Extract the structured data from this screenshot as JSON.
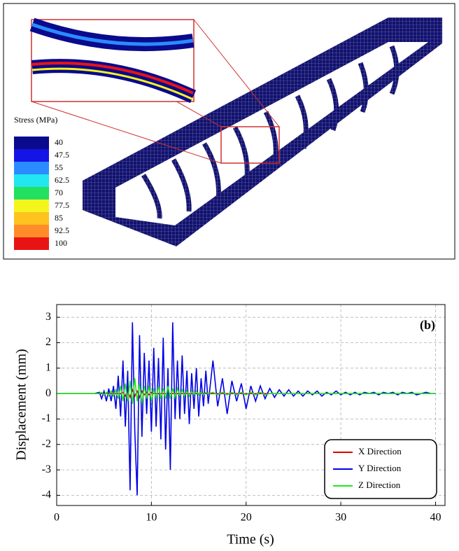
{
  "stress_legend": {
    "title": "Stress (MPa)",
    "levels": [
      40,
      47.5,
      55,
      62.5,
      70,
      77.5,
      85,
      92.5,
      100
    ],
    "colors": [
      "#0a0a8c",
      "#1414e6",
      "#2a8cff",
      "#22e6f0",
      "#22e060",
      "#f5f51e",
      "#ffc21e",
      "#ff8c28",
      "#e81414"
    ]
  },
  "chart_data": {
    "type": "line",
    "annotation": "(b)",
    "xlabel": "Time (s)",
    "ylabel": "Displacement (mm)",
    "xlim": [
      0,
      41
    ],
    "ylim": [
      -4.4,
      3.5
    ],
    "xticks": [
      0,
      10,
      20,
      30,
      40
    ],
    "yticks": [
      -4,
      -3,
      -2,
      -1,
      0,
      1,
      2,
      3
    ],
    "grid": true,
    "legend_position": "lower right",
    "x": [
      0,
      4,
      4.5,
      4.75,
      5,
      5.25,
      5.5,
      5.75,
      6,
      6.25,
      6.5,
      6.75,
      7,
      7.25,
      7.5,
      7.75,
      8,
      8.25,
      8.5,
      8.75,
      9,
      9.25,
      9.5,
      9.75,
      10,
      10.25,
      10.5,
      10.75,
      11,
      11.25,
      11.5,
      11.75,
      12,
      12.25,
      12.5,
      12.75,
      13,
      13.25,
      13.5,
      13.75,
      14,
      14.25,
      14.5,
      14.75,
      15,
      15.25,
      15.5,
      15.75,
      16,
      16.5,
      17,
      17.5,
      18,
      18.5,
      19,
      19.5,
      20,
      20.5,
      21,
      21.5,
      22,
      22.5,
      23,
      23.5,
      24,
      24.5,
      25,
      25.5,
      26,
      26.5,
      27,
      27.5,
      28,
      28.5,
      29,
      29.5,
      30,
      30.5,
      31,
      31.5,
      32,
      32.5,
      33,
      33.5,
      34,
      34.5,
      35,
      35.5,
      36,
      36.5,
      37,
      37.5,
      38,
      38.5,
      39,
      39.5,
      40
    ],
    "series": [
      {
        "name": "X Direction",
        "color": "#e00000",
        "values": [
          0,
          0,
          0,
          0,
          0,
          0,
          0,
          0,
          0,
          0,
          0,
          0,
          0.05,
          -0.1,
          0.1,
          -0.15,
          0.15,
          -0.1,
          0.1,
          -0.15,
          0.1,
          -0.05,
          0.05,
          -0.05,
          0.05,
          0,
          0,
          0,
          0,
          0,
          0,
          0,
          0,
          0,
          0,
          0,
          0,
          0,
          0,
          0,
          0,
          0,
          0,
          0,
          0,
          0,
          0,
          0,
          0,
          0,
          0,
          0,
          0,
          0,
          0,
          0,
          0,
          0,
          0,
          0,
          0,
          0,
          0,
          0,
          0,
          0,
          0,
          0,
          0,
          0,
          0,
          0,
          0,
          0,
          0,
          0,
          0,
          0,
          0,
          0,
          0,
          0,
          0,
          0,
          0,
          0,
          0,
          0,
          0,
          0,
          0,
          0,
          0,
          0,
          0,
          0,
          0
        ]
      },
      {
        "name": "Y Direction",
        "color": "#0000e6",
        "values": [
          0,
          0,
          0.05,
          -0.2,
          0.1,
          -0.3,
          0.2,
          -0.3,
          0.3,
          -0.6,
          0.7,
          -0.9,
          1.3,
          -1.3,
          0.9,
          -3.8,
          2.8,
          -1.5,
          -4.0,
          2.3,
          -1.7,
          1.6,
          -0.8,
          1.3,
          -1.5,
          1.8,
          -1.3,
          1.4,
          -1.8,
          2.2,
          -2.2,
          1.0,
          -3.0,
          2.8,
          -1.0,
          1.3,
          -1.0,
          1.5,
          -0.8,
          0.9,
          -1.2,
          0.8,
          -0.6,
          1.0,
          -0.9,
          0.6,
          -0.5,
          0.9,
          -0.4,
          1.3,
          -0.5,
          0.6,
          -0.8,
          0.5,
          -0.3,
          0.4,
          -0.6,
          0.3,
          -0.3,
          0.3,
          -0.2,
          0.2,
          -0.15,
          0.15,
          -0.1,
          0.15,
          -0.1,
          0.1,
          -0.1,
          0.1,
          -0.05,
          0.1,
          -0.1,
          0.05,
          -0.05,
          0.1,
          -0.05,
          0.05,
          -0.05,
          0.05,
          -0.05,
          0.05,
          0,
          0.05,
          -0.05,
          0.05,
          0,
          0.05,
          -0.05,
          0.05,
          0,
          0.05,
          -0.05,
          0,
          0.05,
          0,
          0
        ]
      },
      {
        "name": "Z Direction",
        "color": "#22e622",
        "values": [
          0,
          0,
          0,
          0.05,
          -0.05,
          0.05,
          -0.1,
          0.1,
          -0.1,
          0.15,
          -0.2,
          0.3,
          -0.3,
          0.4,
          -0.3,
          0.5,
          -0.4,
          0.6,
          -0.3,
          0.4,
          -0.4,
          0.3,
          -0.2,
          0.3,
          -0.3,
          0.2,
          -0.2,
          0.3,
          -0.2,
          0.2,
          -0.2,
          0.3,
          -0.2,
          0.2,
          -0.15,
          0.2,
          -0.1,
          0.15,
          -0.1,
          0.1,
          -0.1,
          0.1,
          -0.05,
          0.1,
          -0.05,
          0.05,
          -0.05,
          0.05,
          0,
          0.05,
          -0.05,
          0.05,
          -0.05,
          0.05,
          -0.05,
          0.05,
          -0.05,
          0.05,
          -0.05,
          0.05,
          -0.05,
          0,
          0,
          0,
          0,
          0,
          0,
          0,
          0,
          0,
          0,
          0,
          0,
          0,
          0,
          0,
          0,
          0,
          0,
          0,
          0,
          0,
          0,
          0,
          0,
          0,
          0,
          0,
          0,
          0,
          0,
          0,
          0,
          0,
          0,
          0,
          0
        ]
      }
    ]
  }
}
